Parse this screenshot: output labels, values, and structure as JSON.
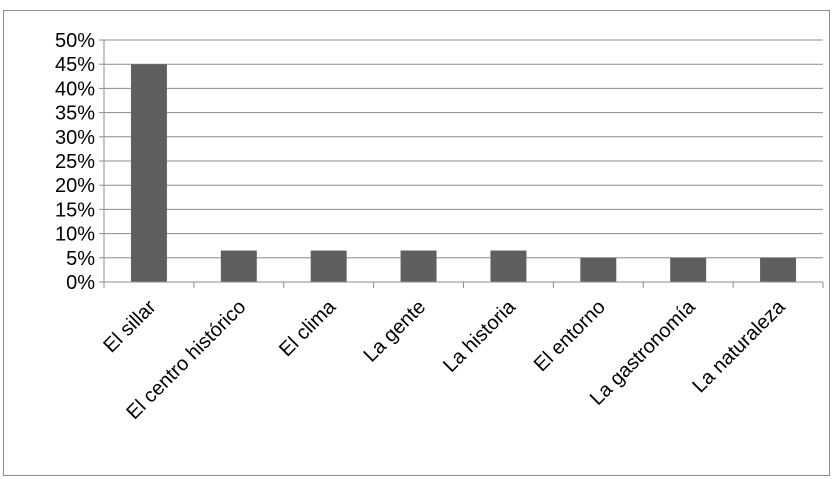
{
  "chart_data": {
    "type": "bar",
    "categories": [
      "El sillar",
      "El centro histórico",
      "El clima",
      "La gente",
      "La historia",
      "El entorno",
      "La gastronomía",
      "La naturaleza"
    ],
    "values": [
      45,
      6.5,
      6.5,
      6.5,
      6.5,
      5,
      5,
      5
    ],
    "yticks": [
      "0%",
      "5%",
      "10%",
      "15%",
      "20%",
      "25%",
      "30%",
      "35%",
      "40%",
      "45%",
      "50%"
    ],
    "ylim": [
      0,
      50
    ],
    "ystep": 5,
    "grid": true,
    "legend": "none",
    "bar_color": "#5f5f5f",
    "grid_color": "#8c8c8c"
  }
}
